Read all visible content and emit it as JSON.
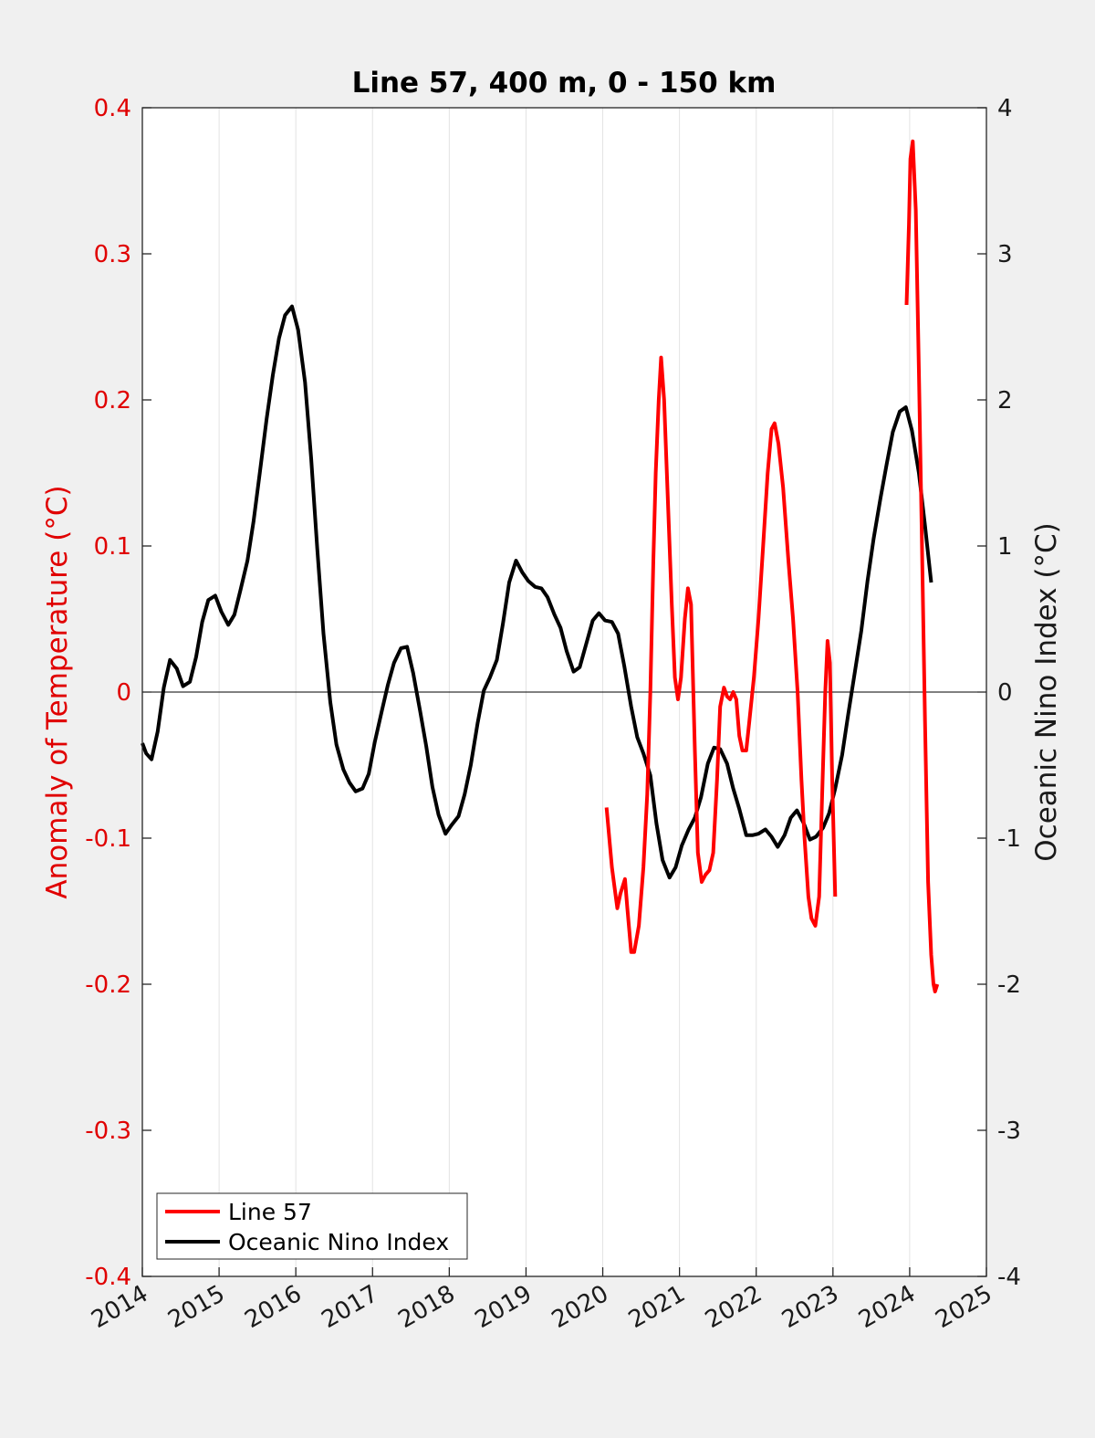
{
  "chart_data": {
    "type": "line",
    "title": "Line 57, 400 m, 0 - 150 km",
    "xlabel": "",
    "ylabel_left": "Anomaly of Temperature (°C)",
    "ylabel_right": "Oceanic Nino Index (°C)",
    "xlim": [
      2014,
      2025
    ],
    "ylim_left": [
      -0.4,
      0.4
    ],
    "ylim_right": [
      -4,
      4
    ],
    "grid": "vertical",
    "legend_position": "bottom-left",
    "x_ticks": [
      "2014",
      "2015",
      "2016",
      "2017",
      "2018",
      "2019",
      "2020",
      "2021",
      "2022",
      "2023",
      "2024",
      "2025"
    ],
    "y_ticks_left": [
      "0.4",
      "0.3",
      "0.2",
      "0.1",
      "0",
      "-0.1",
      "-0.2",
      "-0.3",
      "-0.4"
    ],
    "y_ticks_right": [
      "4",
      "3",
      "2",
      "1",
      "0",
      "-1",
      "-2",
      "-3",
      "-4"
    ],
    "series": [
      {
        "name": "Line 57",
        "axis": "left",
        "color": "#ff0000",
        "segments": [
          [
            [
              2020.05,
              -0.079
            ],
            [
              2020.12,
              -0.12
            ],
            [
              2020.19,
              -0.148
            ],
            [
              2020.23,
              -0.138
            ],
            [
              2020.29,
              -0.128
            ],
            [
              2020.32,
              -0.148
            ],
            [
              2020.37,
              -0.178
            ],
            [
              2020.41,
              -0.178
            ],
            [
              2020.47,
              -0.16
            ],
            [
              2020.53,
              -0.12
            ],
            [
              2020.58,
              -0.07
            ],
            [
              2020.62,
              0.0
            ],
            [
              2020.66,
              0.09
            ],
            [
              2020.69,
              0.15
            ],
            [
              2020.73,
              0.2
            ],
            [
              2020.76,
              0.229
            ],
            [
              2020.8,
              0.2
            ],
            [
              2020.85,
              0.13
            ],
            [
              2020.9,
              0.06
            ],
            [
              2020.94,
              0.01
            ],
            [
              2020.98,
              -0.005
            ],
            [
              2021.02,
              0.01
            ],
            [
              2021.07,
              0.05
            ],
            [
              2021.11,
              0.071
            ],
            [
              2021.15,
              0.06
            ],
            [
              2021.2,
              -0.04
            ],
            [
              2021.24,
              -0.11
            ],
            [
              2021.29,
              -0.13
            ],
            [
              2021.34,
              -0.125
            ],
            [
              2021.39,
              -0.122
            ],
            [
              2021.44,
              -0.11
            ],
            [
              2021.49,
              -0.06
            ],
            [
              2021.53,
              -0.01
            ],
            [
              2021.58,
              0.003
            ],
            [
              2021.62,
              -0.003
            ],
            [
              2021.66,
              -0.005
            ],
            [
              2021.7,
              0.0
            ],
            [
              2021.74,
              -0.005
            ],
            [
              2021.78,
              -0.03
            ],
            [
              2021.82,
              -0.04
            ],
            [
              2021.87,
              -0.04
            ],
            [
              2021.91,
              -0.02
            ],
            [
              2021.97,
              0.01
            ],
            [
              2022.03,
              0.05
            ],
            [
              2022.09,
              0.1
            ],
            [
              2022.15,
              0.15
            ],
            [
              2022.2,
              0.18
            ],
            [
              2022.24,
              0.184
            ],
            [
              2022.29,
              0.17
            ],
            [
              2022.35,
              0.14
            ],
            [
              2022.42,
              0.09
            ],
            [
              2022.48,
              0.05
            ],
            [
              2022.54,
              0.0
            ],
            [
              2022.59,
              -0.06
            ],
            [
              2022.63,
              -0.1
            ],
            [
              2022.68,
              -0.14
            ],
            [
              2022.72,
              -0.155
            ],
            [
              2022.77,
              -0.16
            ],
            [
              2022.82,
              -0.14
            ],
            [
              2022.86,
              -0.07
            ],
            [
              2022.9,
              0.0
            ],
            [
              2022.93,
              0.035
            ],
            [
              2022.96,
              0.02
            ],
            [
              2022.99,
              -0.06
            ],
            [
              2023.03,
              -0.14
            ]
          ],
          [
            [
              2023.96,
              0.265
            ],
            [
              2023.99,
              0.32
            ],
            [
              2024.01,
              0.365
            ],
            [
              2024.04,
              0.377
            ],
            [
              2024.08,
              0.33
            ],
            [
              2024.12,
              0.22
            ],
            [
              2024.16,
              0.1
            ],
            [
              2024.2,
              -0.02
            ],
            [
              2024.24,
              -0.13
            ],
            [
              2024.28,
              -0.18
            ],
            [
              2024.31,
              -0.2
            ],
            [
              2024.33,
              -0.205
            ],
            [
              2024.36,
              -0.2
            ]
          ]
        ]
      },
      {
        "name": "Oceanic Nino Index",
        "axis": "right",
        "color": "#000000",
        "segments": [
          [
            [
              2014.0,
              -0.35
            ],
            [
              2014.05,
              -0.42
            ],
            [
              2014.12,
              -0.46
            ],
            [
              2014.2,
              -0.27
            ],
            [
              2014.28,
              0.03
            ],
            [
              2014.36,
              0.22
            ],
            [
              2014.45,
              0.16
            ],
            [
              2014.53,
              0.04
            ],
            [
              2014.62,
              0.07
            ],
            [
              2014.7,
              0.24
            ],
            [
              2014.78,
              0.48
            ],
            [
              2014.86,
              0.63
            ],
            [
              2014.95,
              0.66
            ],
            [
              2015.03,
              0.55
            ],
            [
              2015.12,
              0.46
            ],
            [
              2015.2,
              0.53
            ],
            [
              2015.28,
              0.7
            ],
            [
              2015.37,
              0.9
            ],
            [
              2015.45,
              1.17
            ],
            [
              2015.53,
              1.5
            ],
            [
              2015.62,
              1.87
            ],
            [
              2015.7,
              2.17
            ],
            [
              2015.78,
              2.42
            ],
            [
              2015.86,
              2.58
            ],
            [
              2015.95,
              2.64
            ],
            [
              2016.03,
              2.48
            ],
            [
              2016.12,
              2.12
            ],
            [
              2016.2,
              1.6
            ],
            [
              2016.28,
              0.98
            ],
            [
              2016.36,
              0.4
            ],
            [
              2016.45,
              -0.07
            ],
            [
              2016.53,
              -0.36
            ],
            [
              2016.62,
              -0.53
            ],
            [
              2016.7,
              -0.62
            ],
            [
              2016.78,
              -0.68
            ],
            [
              2016.87,
              -0.66
            ],
            [
              2016.95,
              -0.56
            ],
            [
              2017.03,
              -0.34
            ],
            [
              2017.12,
              -0.13
            ],
            [
              2017.2,
              0.05
            ],
            [
              2017.28,
              0.2
            ],
            [
              2017.37,
              0.3
            ],
            [
              2017.45,
              0.31
            ],
            [
              2017.53,
              0.13
            ],
            [
              2017.62,
              -0.13
            ],
            [
              2017.7,
              -0.37
            ],
            [
              2017.78,
              -0.65
            ],
            [
              2017.86,
              -0.84
            ],
            [
              2017.95,
              -0.97
            ],
            [
              2018.03,
              -0.91
            ],
            [
              2018.12,
              -0.85
            ],
            [
              2018.2,
              -0.7
            ],
            [
              2018.28,
              -0.5
            ],
            [
              2018.37,
              -0.21
            ],
            [
              2018.45,
              0.01
            ],
            [
              2018.53,
              0.1
            ],
            [
              2018.62,
              0.22
            ],
            [
              2018.7,
              0.47
            ],
            [
              2018.78,
              0.75
            ],
            [
              2018.87,
              0.9
            ],
            [
              2018.95,
              0.82
            ],
            [
              2019.03,
              0.76
            ],
            [
              2019.12,
              0.72
            ],
            [
              2019.2,
              0.71
            ],
            [
              2019.28,
              0.65
            ],
            [
              2019.37,
              0.53
            ],
            [
              2019.45,
              0.44
            ],
            [
              2019.53,
              0.28
            ],
            [
              2019.62,
              0.14
            ],
            [
              2019.7,
              0.17
            ],
            [
              2019.78,
              0.32
            ],
            [
              2019.87,
              0.49
            ],
            [
              2019.95,
              0.54
            ],
            [
              2020.03,
              0.49
            ],
            [
              2020.12,
              0.48
            ],
            [
              2020.2,
              0.4
            ],
            [
              2020.28,
              0.18
            ],
            [
              2020.37,
              -0.1
            ],
            [
              2020.45,
              -0.31
            ],
            [
              2020.53,
              -0.42
            ],
            [
              2020.62,
              -0.57
            ],
            [
              2020.7,
              -0.9
            ],
            [
              2020.78,
              -1.15
            ],
            [
              2020.87,
              -1.27
            ],
            [
              2020.95,
              -1.2
            ],
            [
              2021.03,
              -1.05
            ],
            [
              2021.12,
              -0.94
            ],
            [
              2021.2,
              -0.86
            ],
            [
              2021.28,
              -0.72
            ],
            [
              2021.37,
              -0.49
            ],
            [
              2021.45,
              -0.38
            ],
            [
              2021.53,
              -0.39
            ],
            [
              2021.62,
              -0.49
            ],
            [
              2021.7,
              -0.66
            ],
            [
              2021.78,
              -0.8
            ],
            [
              2021.87,
              -0.98
            ],
            [
              2021.95,
              -0.98
            ],
            [
              2022.03,
              -0.97
            ],
            [
              2022.12,
              -0.94
            ],
            [
              2022.2,
              -0.99
            ],
            [
              2022.28,
              -1.06
            ],
            [
              2022.37,
              -0.98
            ],
            [
              2022.45,
              -0.86
            ],
            [
              2022.53,
              -0.81
            ],
            [
              2022.62,
              -0.9
            ],
            [
              2022.7,
              -1.01
            ],
            [
              2022.78,
              -0.99
            ],
            [
              2022.87,
              -0.93
            ],
            [
              2022.95,
              -0.83
            ],
            [
              2023.03,
              -0.66
            ],
            [
              2023.12,
              -0.43
            ],
            [
              2023.2,
              -0.15
            ],
            [
              2023.28,
              0.12
            ],
            [
              2023.37,
              0.42
            ],
            [
              2023.45,
              0.76
            ],
            [
              2023.53,
              1.05
            ],
            [
              2023.62,
              1.33
            ],
            [
              2023.7,
              1.56
            ],
            [
              2023.78,
              1.78
            ],
            [
              2023.87,
              1.92
            ],
            [
              2023.95,
              1.95
            ],
            [
              2024.03,
              1.79
            ],
            [
              2024.12,
              1.5
            ],
            [
              2024.2,
              1.14
            ],
            [
              2024.28,
              0.75
            ]
          ]
        ]
      }
    ]
  }
}
